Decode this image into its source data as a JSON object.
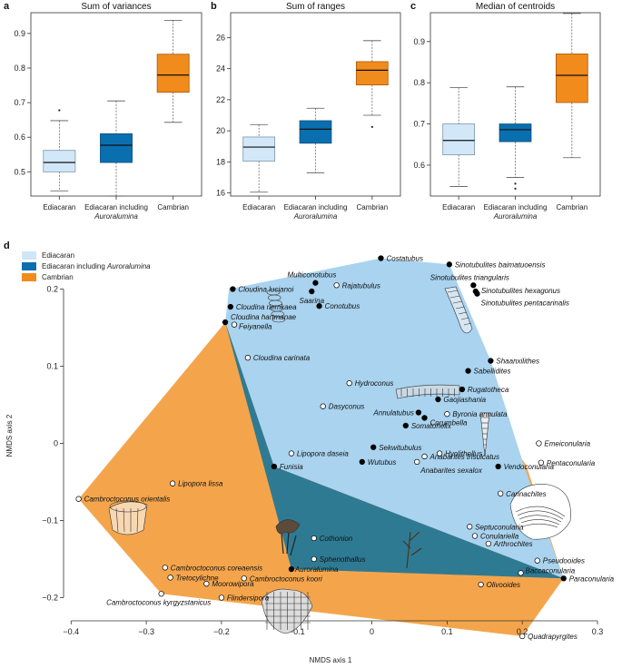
{
  "colors": {
    "ediacaran": "#cfe6f8",
    "ediacaran_box": "#d2e8f9",
    "ediacaran_incl": "#0a6fae",
    "cambrian": "#f08b1c",
    "cambrian_hull": "#f4a54c",
    "ediacaran_hull": "#a9d3ef",
    "overlap_hull": "#2f7a93"
  },
  "chart_data": [
    {
      "type": "boxplot",
      "panel": "a",
      "title": "Sum of variances",
      "ylim": [
        0.43,
        0.96
      ],
      "yticks": [
        0.5,
        0.6,
        0.7,
        0.8,
        0.9
      ],
      "ytick_labels": [
        "0.5",
        "0.6",
        "0.7",
        "0.8",
        "0.9"
      ],
      "categories": [
        {
          "line1": "Ediacaran",
          "line2": ""
        },
        {
          "line1": "Ediacaran including",
          "line2": "Auroralumina"
        },
        {
          "line1": "Cambrian",
          "line2": ""
        }
      ],
      "boxes": [
        {
          "whislo": 0.445,
          "q1": 0.5,
          "med": 0.527,
          "q3": 0.562,
          "whishi": 0.648,
          "fliers": [
            0.678
          ]
        },
        {
          "whislo": 0.43,
          "q1": 0.527,
          "med": 0.577,
          "q3": 0.61,
          "whishi": 0.705,
          "fliers": []
        },
        {
          "whislo": 0.643,
          "q1": 0.73,
          "med": 0.78,
          "q3": 0.84,
          "whishi": 0.938,
          "fliers": []
        }
      ]
    },
    {
      "type": "boxplot",
      "panel": "b",
      "title": "Sum of ranges",
      "ylim": [
        15.8,
        27.6
      ],
      "yticks": [
        16,
        18,
        20,
        22,
        24,
        26
      ],
      "ytick_labels": [
        "16",
        "18",
        "20",
        "22",
        "24",
        "26"
      ],
      "categories": [
        {
          "line1": "Ediacaran",
          "line2": ""
        },
        {
          "line1": "Ediacaran including",
          "line2": "Auroralumina"
        },
        {
          "line1": "Cambrian",
          "line2": ""
        }
      ],
      "boxes": [
        {
          "whislo": 16.05,
          "q1": 18.05,
          "med": 18.95,
          "q3": 19.6,
          "whishi": 20.4,
          "fliers": []
        },
        {
          "whislo": 17.3,
          "q1": 19.2,
          "med": 20.1,
          "q3": 20.65,
          "whishi": 21.45,
          "fliers": []
        },
        {
          "whislo": 21.0,
          "q1": 22.95,
          "med": 23.9,
          "q3": 24.45,
          "whishi": 25.8,
          "fliers": [
            20.25
          ]
        }
      ]
    },
    {
      "type": "boxplot",
      "panel": "c",
      "title": "Median of centroids",
      "ylim": [
        0.525,
        0.97
      ],
      "yticks": [
        0.6,
        0.7,
        0.8,
        0.9
      ],
      "ytick_labels": [
        "0.6",
        "0.7",
        "0.8",
        "0.9"
      ],
      "categories": [
        {
          "line1": "Ediacaran",
          "line2": ""
        },
        {
          "line1": "Ediacaran including",
          "line2": "Auroralumina"
        },
        {
          "line1": "Cambrian",
          "line2": ""
        }
      ],
      "boxes": [
        {
          "whislo": 0.548,
          "q1": 0.625,
          "med": 0.66,
          "q3": 0.7,
          "whishi": 0.788,
          "fliers": []
        },
        {
          "whislo": 0.57,
          "q1": 0.657,
          "med": 0.686,
          "q3": 0.7,
          "whishi": 0.79,
          "fliers": [
            0.555,
            0.543
          ]
        },
        {
          "whislo": 0.618,
          "q1": 0.752,
          "med": 0.818,
          "q3": 0.87,
          "whishi": 0.968,
          "fliers": []
        }
      ]
    },
    {
      "type": "scatter",
      "panel": "d",
      "xlabel": "NMDS axis 1",
      "ylabel": "NMDS axis 2",
      "xlim": [
        -0.41,
        0.3
      ],
      "ylim": [
        -0.23,
        0.25
      ],
      "xticks": [
        -0.4,
        -0.3,
        -0.2,
        -0.1,
        0,
        0.1,
        0.2,
        0.3
      ],
      "xtick_labels": [
        "−0.4",
        "−0.3",
        "−0.2",
        "−0.1",
        "0",
        "0.1",
        "0.2",
        "0.3"
      ],
      "yticks": [
        -0.2,
        -0.1,
        0,
        0.1,
        0.2
      ],
      "ytick_labels": [
        "−0.2",
        "−0.1",
        "0",
        "0.1",
        "0.2"
      ],
      "legend": [
        {
          "label": "Ediacaran",
          "italic": "",
          "color_key": "ediacaran"
        },
        {
          "label": "Ediacaran including ",
          "italic": "Auroralumina",
          "color_key": "ediacaran_incl"
        },
        {
          "label": "Cambrian",
          "italic": "",
          "color_key": "cambrian"
        }
      ],
      "hull_cambrian": [
        [
          -0.39,
          -0.072
        ],
        [
          -0.195,
          0.157
        ],
        [
          0.012,
          0.24
        ],
        [
          0.205,
          -0.028
        ],
        [
          0.255,
          -0.175
        ],
        [
          0.2,
          -0.25
        ],
        [
          -0.28,
          -0.195
        ]
      ],
      "hull_ediacaran": [
        [
          -0.195,
          0.157
        ],
        [
          -0.19,
          0.2
        ],
        [
          0.012,
          0.24
        ],
        [
          0.103,
          0.232
        ],
        [
          0.158,
          0.107
        ],
        [
          0.202,
          -0.028
        ],
        [
          0.255,
          -0.175
        ],
        [
          -0.13,
          -0.03
        ]
      ],
      "hull_overlap": [
        [
          -0.195,
          0.157
        ],
        [
          -0.13,
          -0.03
        ],
        [
          0.255,
          -0.175
        ],
        [
          -0.107,
          -0.163
        ]
      ],
      "points": [
        {
          "name": "Costatubus",
          "x": 0.012,
          "y": 0.24,
          "filled": true,
          "lx": 6,
          "ly": 0,
          "anchor": "start"
        },
        {
          "name": "Sinotubulites baimatuoensis",
          "x": 0.103,
          "y": 0.232,
          "filled": true,
          "lx": 6,
          "ly": 0,
          "anchor": "start"
        },
        {
          "name": "Sinotubulites triangularis",
          "x": 0.135,
          "y": 0.205,
          "filled": true,
          "lx": -4,
          "ly": -9,
          "anchor": "middle"
        },
        {
          "name": "Sinotubulites hexagonus",
          "x": 0.138,
          "y": 0.197,
          "filled": true,
          "lx": 6,
          "ly": -1,
          "anchor": "start"
        },
        {
          "name": "Sinotubulites pentacarinalis",
          "x": 0.14,
          "y": 0.194,
          "filled": true,
          "lx": 4,
          "ly": 10,
          "anchor": "start"
        },
        {
          "name": "Multiconotubus",
          "x": -0.075,
          "y": 0.208,
          "filled": true,
          "lx": -4,
          "ly": -9,
          "anchor": "middle"
        },
        {
          "name": "Saarina",
          "x": -0.08,
          "y": 0.197,
          "filled": true,
          "lx": 0,
          "ly": 10,
          "anchor": "middle"
        },
        {
          "name": "Rajatubulus",
          "x": -0.047,
          "y": 0.205,
          "filled": false,
          "lx": 6,
          "ly": 0,
          "anchor": "start"
        },
        {
          "name": "Conotubus",
          "x": -0.07,
          "y": 0.178,
          "filled": true,
          "lx": 6,
          "ly": 0,
          "anchor": "start"
        },
        {
          "name": "Cloudina lucianoi",
          "x": -0.185,
          "y": 0.2,
          "filled": true,
          "lx": 6,
          "ly": 0,
          "anchor": "start"
        },
        {
          "name": "Cloudina riemkaea",
          "x": -0.188,
          "y": 0.177,
          "filled": true,
          "lx": 6,
          "ly": 0,
          "anchor": "start"
        },
        {
          "name": "Cloudina hartmanae",
          "x": -0.195,
          "y": 0.157,
          "filled": true,
          "lx": 6,
          "ly": -6,
          "anchor": "start"
        },
        {
          "name": "Feiyanella",
          "x": -0.183,
          "y": 0.154,
          "filled": false,
          "lx": 5,
          "ly": 2,
          "anchor": "start"
        },
        {
          "name": "Cloudina carinata",
          "x": -0.165,
          "y": 0.111,
          "filled": false,
          "lx": 6,
          "ly": 0,
          "anchor": "start"
        },
        {
          "name": "Shaanxilithes",
          "x": 0.158,
          "y": 0.107,
          "filled": true,
          "lx": 6,
          "ly": 0,
          "anchor": "start"
        },
        {
          "name": "Sabellidites",
          "x": 0.128,
          "y": 0.094,
          "filled": true,
          "lx": 6,
          "ly": 0,
          "anchor": "start"
        },
        {
          "name": "Hydroconus",
          "x": -0.03,
          "y": 0.078,
          "filled": false,
          "lx": 6,
          "ly": 0,
          "anchor": "start"
        },
        {
          "name": "Rugatotheca",
          "x": 0.12,
          "y": 0.07,
          "filled": true,
          "lx": 6,
          "ly": 0,
          "anchor": "start"
        },
        {
          "name": "Gaojiashania",
          "x": 0.088,
          "y": 0.057,
          "filled": true,
          "lx": 6,
          "ly": 0,
          "anchor": "start"
        },
        {
          "name": "Dasyconus",
          "x": -0.065,
          "y": 0.048,
          "filled": false,
          "lx": 6,
          "ly": 0,
          "anchor": "start"
        },
        {
          "name": "Annulatubus",
          "x": 0.062,
          "y": 0.04,
          "filled": true,
          "lx": -5,
          "ly": 0,
          "anchor": "end"
        },
        {
          "name": "Byronia annulata",
          "x": 0.1,
          "y": 0.038,
          "filled": false,
          "lx": 6,
          "ly": 0,
          "anchor": "start"
        },
        {
          "name": "Corumbella",
          "x": 0.07,
          "y": 0.033,
          "filled": true,
          "lx": 6,
          "ly": 5,
          "anchor": "start"
        },
        {
          "name": "Somatohelix",
          "x": 0.045,
          "y": 0.023,
          "filled": true,
          "lx": 6,
          "ly": 0,
          "anchor": "start"
        },
        {
          "name": "Sekwitubulus",
          "x": 0.002,
          "y": -0.005,
          "filled": true,
          "lx": 6,
          "ly": 0,
          "anchor": "start"
        },
        {
          "name": "Hyolithellus",
          "x": 0.09,
          "y": -0.013,
          "filled": false,
          "lx": 6,
          "ly": 0,
          "anchor": "start"
        },
        {
          "name": "Wutubus",
          "x": -0.013,
          "y": -0.024,
          "filled": true,
          "lx": 6,
          "ly": 0,
          "anchor": "start"
        },
        {
          "name": "Anabarites trisulcatus",
          "x": 0.07,
          "y": -0.017,
          "filled": false,
          "lx": 6,
          "ly": 0,
          "anchor": "start"
        },
        {
          "name": "Anabarites sexalox",
          "x": 0.06,
          "y": -0.024,
          "filled": false,
          "lx": 4,
          "ly": 9,
          "anchor": "start"
        },
        {
          "name": "Vendoconularia",
          "x": 0.168,
          "y": -0.03,
          "filled": true,
          "lx": 6,
          "ly": 0,
          "anchor": "start"
        },
        {
          "name": "Emeiconularia",
          "x": 0.222,
          "y": 0.0,
          "filled": false,
          "lx": 6,
          "ly": 0,
          "anchor": "start"
        },
        {
          "name": "Pentaconularia",
          "x": 0.225,
          "y": -0.025,
          "filled": false,
          "lx": 6,
          "ly": 0,
          "anchor": "start"
        },
        {
          "name": "Lipopora daseia",
          "x": -0.107,
          "y": -0.013,
          "filled": false,
          "lx": 6,
          "ly": 0,
          "anchor": "start"
        },
        {
          "name": "Funisia",
          "x": -0.13,
          "y": -0.03,
          "filled": true,
          "lx": 6,
          "ly": 0,
          "anchor": "start"
        },
        {
          "name": "Lipopora lissa",
          "x": -0.265,
          "y": -0.052,
          "filled": false,
          "lx": 6,
          "ly": 0,
          "anchor": "start"
        },
        {
          "name": "Cambroctoconus orientalis",
          "x": -0.39,
          "y": -0.072,
          "filled": false,
          "lx": 6,
          "ly": 0,
          "anchor": "start"
        },
        {
          "name": "Carinachites",
          "x": 0.171,
          "y": -0.065,
          "filled": false,
          "lx": 6,
          "ly": 0,
          "anchor": "start"
        },
        {
          "name": "Septuconularia",
          "x": 0.13,
          "y": -0.108,
          "filled": false,
          "lx": 6,
          "ly": 0,
          "anchor": "start"
        },
        {
          "name": "Conulariella",
          "x": 0.137,
          "y": -0.12,
          "filled": false,
          "lx": 6,
          "ly": 0,
          "anchor": "start"
        },
        {
          "name": "Arthrochites",
          "x": 0.155,
          "y": -0.13,
          "filled": false,
          "lx": 6,
          "ly": 0,
          "anchor": "start"
        },
        {
          "name": "Cothonion",
          "x": -0.077,
          "y": -0.123,
          "filled": false,
          "lx": 6,
          "ly": 0,
          "anchor": "start"
        },
        {
          "name": "Sphenothallus",
          "x": -0.077,
          "y": -0.15,
          "filled": false,
          "lx": 6,
          "ly": 0,
          "anchor": "start"
        },
        {
          "name": "Pseudooides",
          "x": 0.22,
          "y": -0.152,
          "filled": false,
          "lx": 6,
          "ly": 0,
          "anchor": "start"
        },
        {
          "name": "Auroralumina",
          "x": -0.107,
          "y": -0.163,
          "filled": true,
          "lx": 4,
          "ly": 0,
          "anchor": "start"
        },
        {
          "name": "Baccaconularia",
          "x": 0.198,
          "y": -0.168,
          "filled": false,
          "lx": 5,
          "ly": -3,
          "anchor": "start"
        },
        {
          "name": "Paraconularia",
          "x": 0.255,
          "y": -0.175,
          "filled": true,
          "lx": 6,
          "ly": 0,
          "anchor": "start"
        },
        {
          "name": "Olivooides",
          "x": 0.145,
          "y": -0.183,
          "filled": false,
          "lx": 6,
          "ly": 0,
          "anchor": "start"
        },
        {
          "name": "Cambroctoconus coreaensis",
          "x": -0.275,
          "y": -0.161,
          "filled": false,
          "lx": 6,
          "ly": 0,
          "anchor": "start"
        },
        {
          "name": "Tretocylichne",
          "x": -0.268,
          "y": -0.174,
          "filled": false,
          "lx": 6,
          "ly": 0,
          "anchor": "start"
        },
        {
          "name": "Cambroctoconus koori",
          "x": -0.17,
          "y": -0.175,
          "filled": false,
          "lx": 6,
          "ly": 0,
          "anchor": "start"
        },
        {
          "name": "Moorowipora",
          "x": -0.22,
          "y": -0.182,
          "filled": false,
          "lx": 6,
          "ly": 0,
          "anchor": "start"
        },
        {
          "name": "Cambroctoconus kyrgyzstanicus",
          "x": -0.28,
          "y": -0.195,
          "filled": false,
          "lx": -3,
          "ly": 9,
          "anchor": "middle"
        },
        {
          "name": "Flindersipora",
          "x": -0.2,
          "y": -0.2,
          "filled": false,
          "lx": 6,
          "ly": 0,
          "anchor": "start"
        },
        {
          "name": "Quadrapyrgites",
          "x": 0.2,
          "y": -0.25,
          "filled": false,
          "lx": 6,
          "ly": 0,
          "anchor": "start"
        }
      ]
    }
  ]
}
